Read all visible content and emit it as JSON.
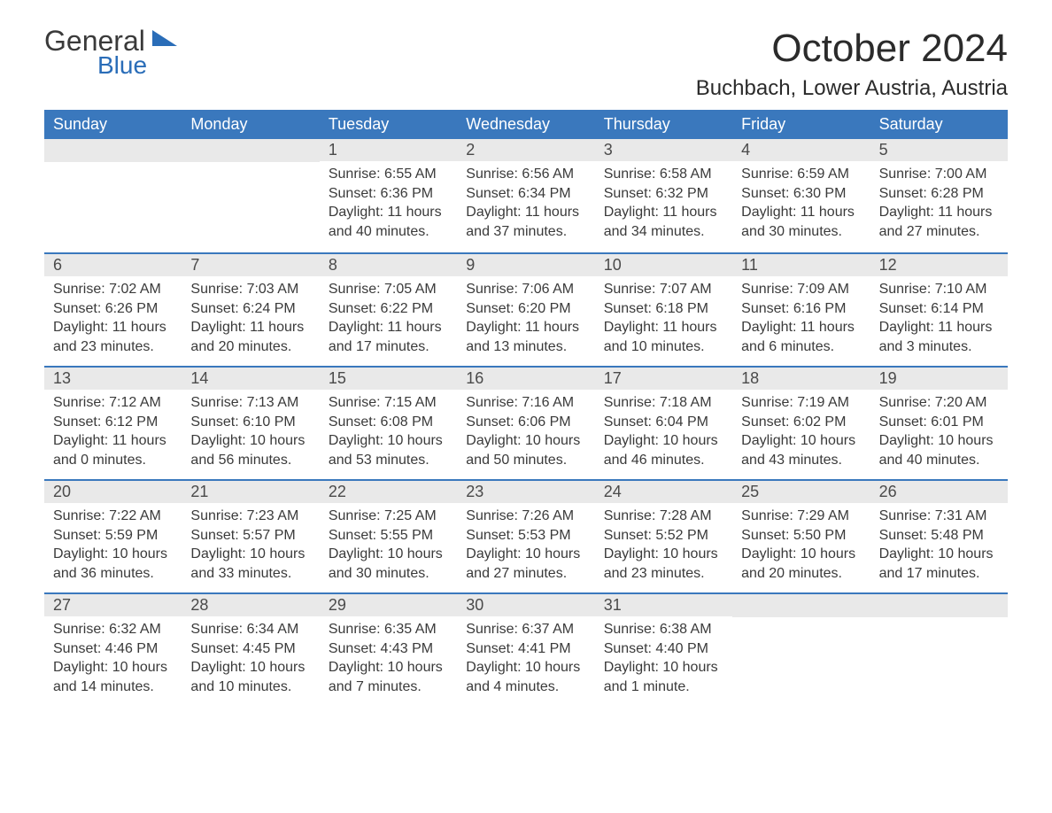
{
  "brand": {
    "general": "General",
    "blue": "Blue"
  },
  "header": {
    "month_title": "October 2024",
    "location": "Buchbach, Lower Austria, Austria"
  },
  "palette": {
    "header_bg": "#3a78bd",
    "header_text": "#ffffff",
    "daynum_bg": "#e9e9e9",
    "text": "#3a3a3a",
    "rule": "#3a78bd",
    "brand_blue": "#2a6db8",
    "page_bg": "#ffffff"
  },
  "typography": {
    "month_title_pt": 44,
    "location_pt": 24,
    "dow_pt": 18,
    "daynum_pt": 18,
    "body_pt": 16
  },
  "days_of_week": [
    "Sunday",
    "Monday",
    "Tuesday",
    "Wednesday",
    "Thursday",
    "Friday",
    "Saturday"
  ],
  "calendar": {
    "type": "table",
    "skip_cells_before_first": 2,
    "weeks": [
      [
        null,
        null,
        {
          "n": "1",
          "sunrise": "Sunrise: 6:55 AM",
          "sunset": "Sunset: 6:36 PM",
          "daylight": "Daylight: 11 hours and 40 minutes."
        },
        {
          "n": "2",
          "sunrise": "Sunrise: 6:56 AM",
          "sunset": "Sunset: 6:34 PM",
          "daylight": "Daylight: 11 hours and 37 minutes."
        },
        {
          "n": "3",
          "sunrise": "Sunrise: 6:58 AM",
          "sunset": "Sunset: 6:32 PM",
          "daylight": "Daylight: 11 hours and 34 minutes."
        },
        {
          "n": "4",
          "sunrise": "Sunrise: 6:59 AM",
          "sunset": "Sunset: 6:30 PM",
          "daylight": "Daylight: 11 hours and 30 minutes."
        },
        {
          "n": "5",
          "sunrise": "Sunrise: 7:00 AM",
          "sunset": "Sunset: 6:28 PM",
          "daylight": "Daylight: 11 hours and 27 minutes."
        }
      ],
      [
        {
          "n": "6",
          "sunrise": "Sunrise: 7:02 AM",
          "sunset": "Sunset: 6:26 PM",
          "daylight": "Daylight: 11 hours and 23 minutes."
        },
        {
          "n": "7",
          "sunrise": "Sunrise: 7:03 AM",
          "sunset": "Sunset: 6:24 PM",
          "daylight": "Daylight: 11 hours and 20 minutes."
        },
        {
          "n": "8",
          "sunrise": "Sunrise: 7:05 AM",
          "sunset": "Sunset: 6:22 PM",
          "daylight": "Daylight: 11 hours and 17 minutes."
        },
        {
          "n": "9",
          "sunrise": "Sunrise: 7:06 AM",
          "sunset": "Sunset: 6:20 PM",
          "daylight": "Daylight: 11 hours and 13 minutes."
        },
        {
          "n": "10",
          "sunrise": "Sunrise: 7:07 AM",
          "sunset": "Sunset: 6:18 PM",
          "daylight": "Daylight: 11 hours and 10 minutes."
        },
        {
          "n": "11",
          "sunrise": "Sunrise: 7:09 AM",
          "sunset": "Sunset: 6:16 PM",
          "daylight": "Daylight: 11 hours and 6 minutes."
        },
        {
          "n": "12",
          "sunrise": "Sunrise: 7:10 AM",
          "sunset": "Sunset: 6:14 PM",
          "daylight": "Daylight: 11 hours and 3 minutes."
        }
      ],
      [
        {
          "n": "13",
          "sunrise": "Sunrise: 7:12 AM",
          "sunset": "Sunset: 6:12 PM",
          "daylight": "Daylight: 11 hours and 0 minutes."
        },
        {
          "n": "14",
          "sunrise": "Sunrise: 7:13 AM",
          "sunset": "Sunset: 6:10 PM",
          "daylight": "Daylight: 10 hours and 56 minutes."
        },
        {
          "n": "15",
          "sunrise": "Sunrise: 7:15 AM",
          "sunset": "Sunset: 6:08 PM",
          "daylight": "Daylight: 10 hours and 53 minutes."
        },
        {
          "n": "16",
          "sunrise": "Sunrise: 7:16 AM",
          "sunset": "Sunset: 6:06 PM",
          "daylight": "Daylight: 10 hours and 50 minutes."
        },
        {
          "n": "17",
          "sunrise": "Sunrise: 7:18 AM",
          "sunset": "Sunset: 6:04 PM",
          "daylight": "Daylight: 10 hours and 46 minutes."
        },
        {
          "n": "18",
          "sunrise": "Sunrise: 7:19 AM",
          "sunset": "Sunset: 6:02 PM",
          "daylight": "Daylight: 10 hours and 43 minutes."
        },
        {
          "n": "19",
          "sunrise": "Sunrise: 7:20 AM",
          "sunset": "Sunset: 6:01 PM",
          "daylight": "Daylight: 10 hours and 40 minutes."
        }
      ],
      [
        {
          "n": "20",
          "sunrise": "Sunrise: 7:22 AM",
          "sunset": "Sunset: 5:59 PM",
          "daylight": "Daylight: 10 hours and 36 minutes."
        },
        {
          "n": "21",
          "sunrise": "Sunrise: 7:23 AM",
          "sunset": "Sunset: 5:57 PM",
          "daylight": "Daylight: 10 hours and 33 minutes."
        },
        {
          "n": "22",
          "sunrise": "Sunrise: 7:25 AM",
          "sunset": "Sunset: 5:55 PM",
          "daylight": "Daylight: 10 hours and 30 minutes."
        },
        {
          "n": "23",
          "sunrise": "Sunrise: 7:26 AM",
          "sunset": "Sunset: 5:53 PM",
          "daylight": "Daylight: 10 hours and 27 minutes."
        },
        {
          "n": "24",
          "sunrise": "Sunrise: 7:28 AM",
          "sunset": "Sunset: 5:52 PM",
          "daylight": "Daylight: 10 hours and 23 minutes."
        },
        {
          "n": "25",
          "sunrise": "Sunrise: 7:29 AM",
          "sunset": "Sunset: 5:50 PM",
          "daylight": "Daylight: 10 hours and 20 minutes."
        },
        {
          "n": "26",
          "sunrise": "Sunrise: 7:31 AM",
          "sunset": "Sunset: 5:48 PM",
          "daylight": "Daylight: 10 hours and 17 minutes."
        }
      ],
      [
        {
          "n": "27",
          "sunrise": "Sunrise: 6:32 AM",
          "sunset": "Sunset: 4:46 PM",
          "daylight": "Daylight: 10 hours and 14 minutes."
        },
        {
          "n": "28",
          "sunrise": "Sunrise: 6:34 AM",
          "sunset": "Sunset: 4:45 PM",
          "daylight": "Daylight: 10 hours and 10 minutes."
        },
        {
          "n": "29",
          "sunrise": "Sunrise: 6:35 AM",
          "sunset": "Sunset: 4:43 PM",
          "daylight": "Daylight: 10 hours and 7 minutes."
        },
        {
          "n": "30",
          "sunrise": "Sunrise: 6:37 AM",
          "sunset": "Sunset: 4:41 PM",
          "daylight": "Daylight: 10 hours and 4 minutes."
        },
        {
          "n": "31",
          "sunrise": "Sunrise: 6:38 AM",
          "sunset": "Sunset: 4:40 PM",
          "daylight": "Daylight: 10 hours and 1 minute."
        },
        null,
        null
      ]
    ]
  }
}
